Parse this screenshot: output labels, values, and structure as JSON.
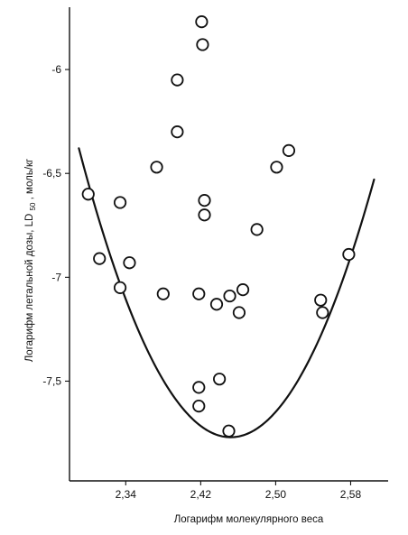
{
  "chart_data": {
    "type": "scatter",
    "xlabel": "Логарифм молекулярного веса",
    "ylabel_main": "Логарифм летальной дозы, LD",
    "ylabel_sub": "50",
    "ylabel_tail": ", моль/кг",
    "x_ticks": [
      {
        "value": 2.34,
        "label": "2,34"
      },
      {
        "value": 2.42,
        "label": "2,42"
      },
      {
        "value": 2.5,
        "label": "2,50"
      },
      {
        "value": 2.58,
        "label": "2,58"
      }
    ],
    "y_ticks": [
      {
        "value": -6.0,
        "label": "-6"
      },
      {
        "value": -6.5,
        "label": "-6,5"
      },
      {
        "value": -7.0,
        "label": "-7"
      },
      {
        "value": -7.5,
        "label": "-7,5"
      }
    ],
    "xlim": [
      2.28,
      2.62
    ],
    "ylim": [
      -7.98,
      -5.7
    ],
    "grid": false,
    "points": [
      {
        "x": 2.3,
        "y": -6.6
      },
      {
        "x": 2.312,
        "y": -6.91
      },
      {
        "x": 2.334,
        "y": -6.64
      },
      {
        "x": 2.334,
        "y": -7.05
      },
      {
        "x": 2.344,
        "y": -6.93
      },
      {
        "x": 2.373,
        "y": -6.47
      },
      {
        "x": 2.38,
        "y": -7.08
      },
      {
        "x": 2.395,
        "y": -6.05
      },
      {
        "x": 2.395,
        "y": -6.3
      },
      {
        "x": 2.421,
        "y": -5.77
      },
      {
        "x": 2.422,
        "y": -5.88
      },
      {
        "x": 2.424,
        "y": -6.63
      },
      {
        "x": 2.424,
        "y": -6.7
      },
      {
        "x": 2.418,
        "y": -7.08
      },
      {
        "x": 2.437,
        "y": -7.13
      },
      {
        "x": 2.451,
        "y": -7.09
      },
      {
        "x": 2.461,
        "y": -7.17
      },
      {
        "x": 2.465,
        "y": -7.06
      },
      {
        "x": 2.418,
        "y": -7.53
      },
      {
        "x": 2.418,
        "y": -7.62
      },
      {
        "x": 2.44,
        "y": -7.49
      },
      {
        "x": 2.45,
        "y": -7.74
      },
      {
        "x": 2.48,
        "y": -6.77
      },
      {
        "x": 2.501,
        "y": -6.47
      },
      {
        "x": 2.514,
        "y": -6.39
      },
      {
        "x": 2.548,
        "y": -7.11
      },
      {
        "x": 2.55,
        "y": -7.17
      },
      {
        "x": 2.578,
        "y": -6.89
      }
    ],
    "bound_curve": {
      "type": "parabola",
      "x_range": [
        2.29,
        2.605
      ],
      "vertex_x": 2.452,
      "vertex_y": -7.77,
      "coefficient": 53
    },
    "colors": {
      "ink": "#111111",
      "background": "#ffffff"
    }
  }
}
